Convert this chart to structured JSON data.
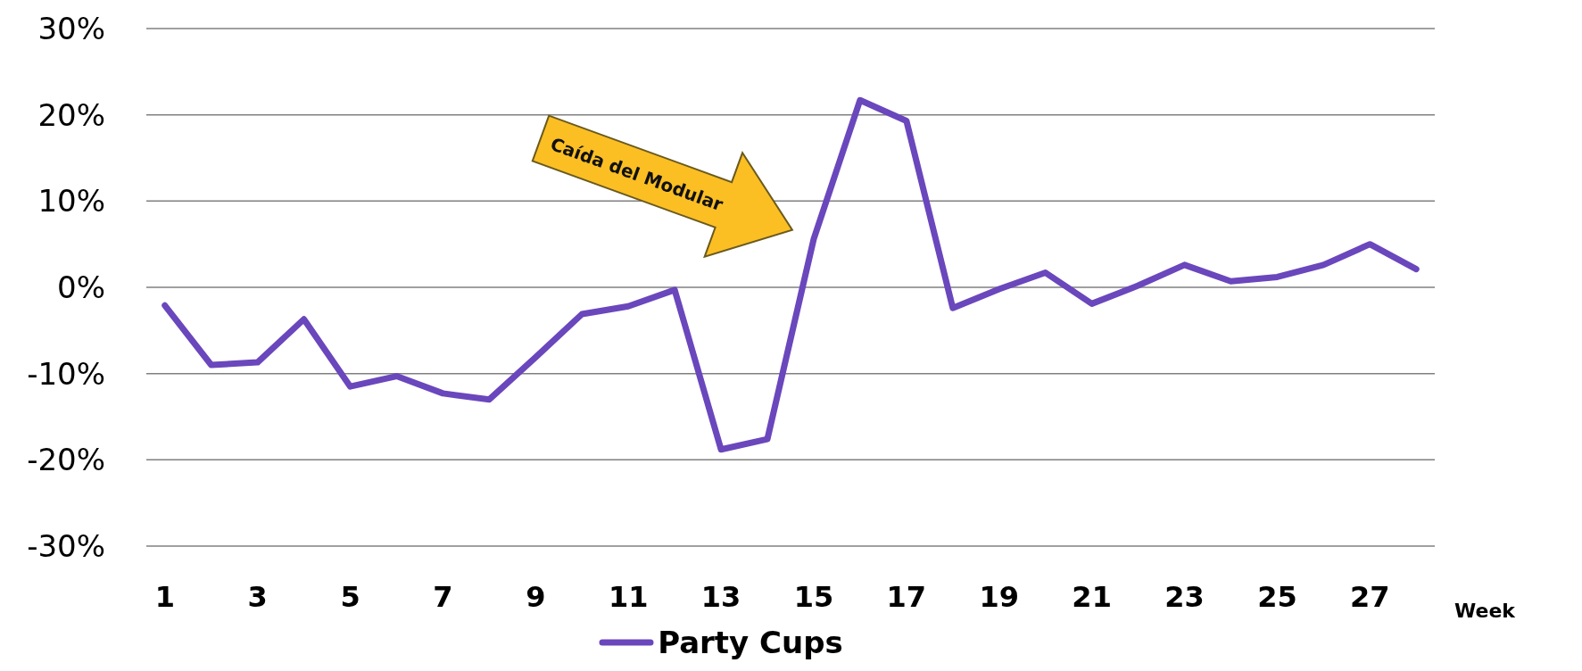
{
  "chart_data": {
    "type": "line",
    "xlabel": "Week",
    "x": [
      1,
      2,
      3,
      4,
      5,
      6,
      7,
      8,
      9,
      10,
      11,
      12,
      13,
      14,
      15,
      16,
      17,
      18,
      19,
      20,
      21,
      22,
      23,
      24,
      25,
      26,
      27,
      28
    ],
    "xlim": [
      0.6,
      28.4
    ],
    "xticks": [
      1,
      3,
      5,
      7,
      9,
      11,
      13,
      15,
      17,
      19,
      21,
      23,
      25,
      27
    ],
    "series": [
      {
        "name": "Party Cups",
        "color": "#6a47bc",
        "values": [
          -2.1,
          -9.0,
          -8.7,
          -3.7,
          -11.5,
          -10.3,
          -12.3,
          -13.0,
          -8.1,
          -3.1,
          -2.2,
          -0.3,
          -18.8,
          -17.6,
          5.6,
          21.7,
          19.3,
          -2.4,
          -0.2,
          1.7,
          -1.9,
          0.2,
          2.6,
          0.7,
          1.2,
          2.6,
          5.0,
          2.1
        ]
      }
    ],
    "ylim": [
      -30,
      30
    ],
    "yticks": [
      {
        "value": -30,
        "label": "-30%"
      },
      {
        "value": -20,
        "label": "-20%"
      },
      {
        "value": -10,
        "label": "-10%"
      },
      {
        "value": 0,
        "label": "0%"
      },
      {
        "value": 10,
        "label": "10%"
      },
      {
        "value": 20,
        "label": "20%"
      },
      {
        "value": 30,
        "label": "30%"
      }
    ],
    "annotations": [
      "Caída del Modular"
    ],
    "grid": "y",
    "legend": "bottom",
    "marker": "none",
    "line_style": "solid"
  }
}
